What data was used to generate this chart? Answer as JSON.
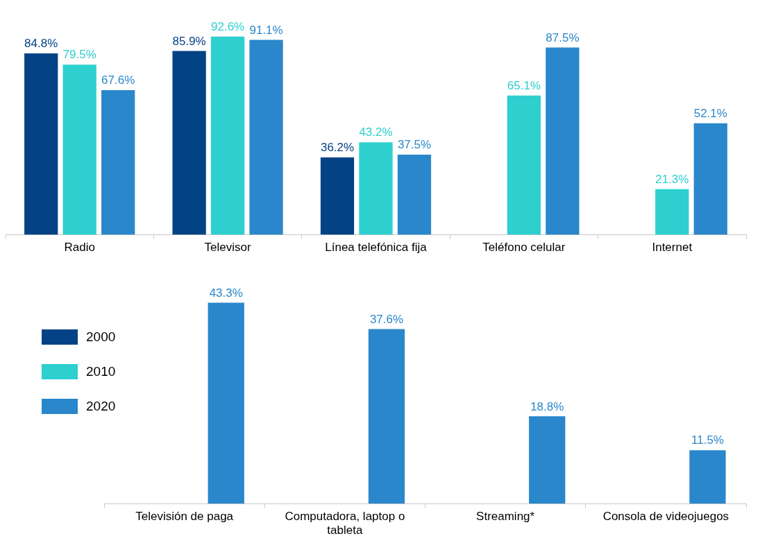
{
  "chart_data": [
    {
      "type": "bar",
      "categories": [
        "Radio",
        "Televisor",
        "Línea telefónica fija",
        "Teléfono celular",
        "Internet"
      ],
      "series": [
        {
          "color": "#034284",
          "values": [
            84.8,
            85.9,
            36.2,
            null,
            null
          ],
          "value_labels": [
            "84.8%",
            "85.9%",
            "36.2%",
            null,
            null
          ]
        },
        {
          "color": "#2ecfcf",
          "values": [
            79.5,
            92.6,
            43.2,
            65.1,
            21.3
          ],
          "value_labels": [
            "79.5%",
            "92.6%",
            "43.2%",
            "65.1%",
            "21.3%"
          ]
        },
        {
          "color": "#2a87cb",
          "values": [
            67.6,
            91.1,
            37.5,
            87.5,
            52.1
          ],
          "value_labels": [
            "67.6%",
            "91.1%",
            "37.5%",
            "87.5%",
            "52.1%"
          ]
        }
      ],
      "grid": false,
      "legend": false,
      "tick_labels": "x"
    },
    {
      "type": "bar",
      "categories": [
        "Televisión de paga",
        "Computadora, laptop o tableta",
        "Streaming*",
        "Consola de videojuegos"
      ],
      "series": [
        {
          "name": "2000",
          "color": "#034284",
          "values": [
            null,
            null,
            null,
            null
          ],
          "value_labels": [
            null,
            null,
            null,
            null
          ]
        },
        {
          "name": "2010",
          "color": "#2ecfcf",
          "values": [
            null,
            null,
            null,
            null
          ],
          "value_labels": [
            null,
            null,
            null,
            null
          ]
        },
        {
          "name": "2020",
          "color": "#2a87cb",
          "values": [
            43.3,
            37.6,
            18.8,
            11.5
          ],
          "value_labels": [
            "43.3%",
            "37.6%",
            "18.8%",
            "11.5%"
          ]
        }
      ],
      "grid": false,
      "legend": "left",
      "tick_labels": "x"
    }
  ]
}
